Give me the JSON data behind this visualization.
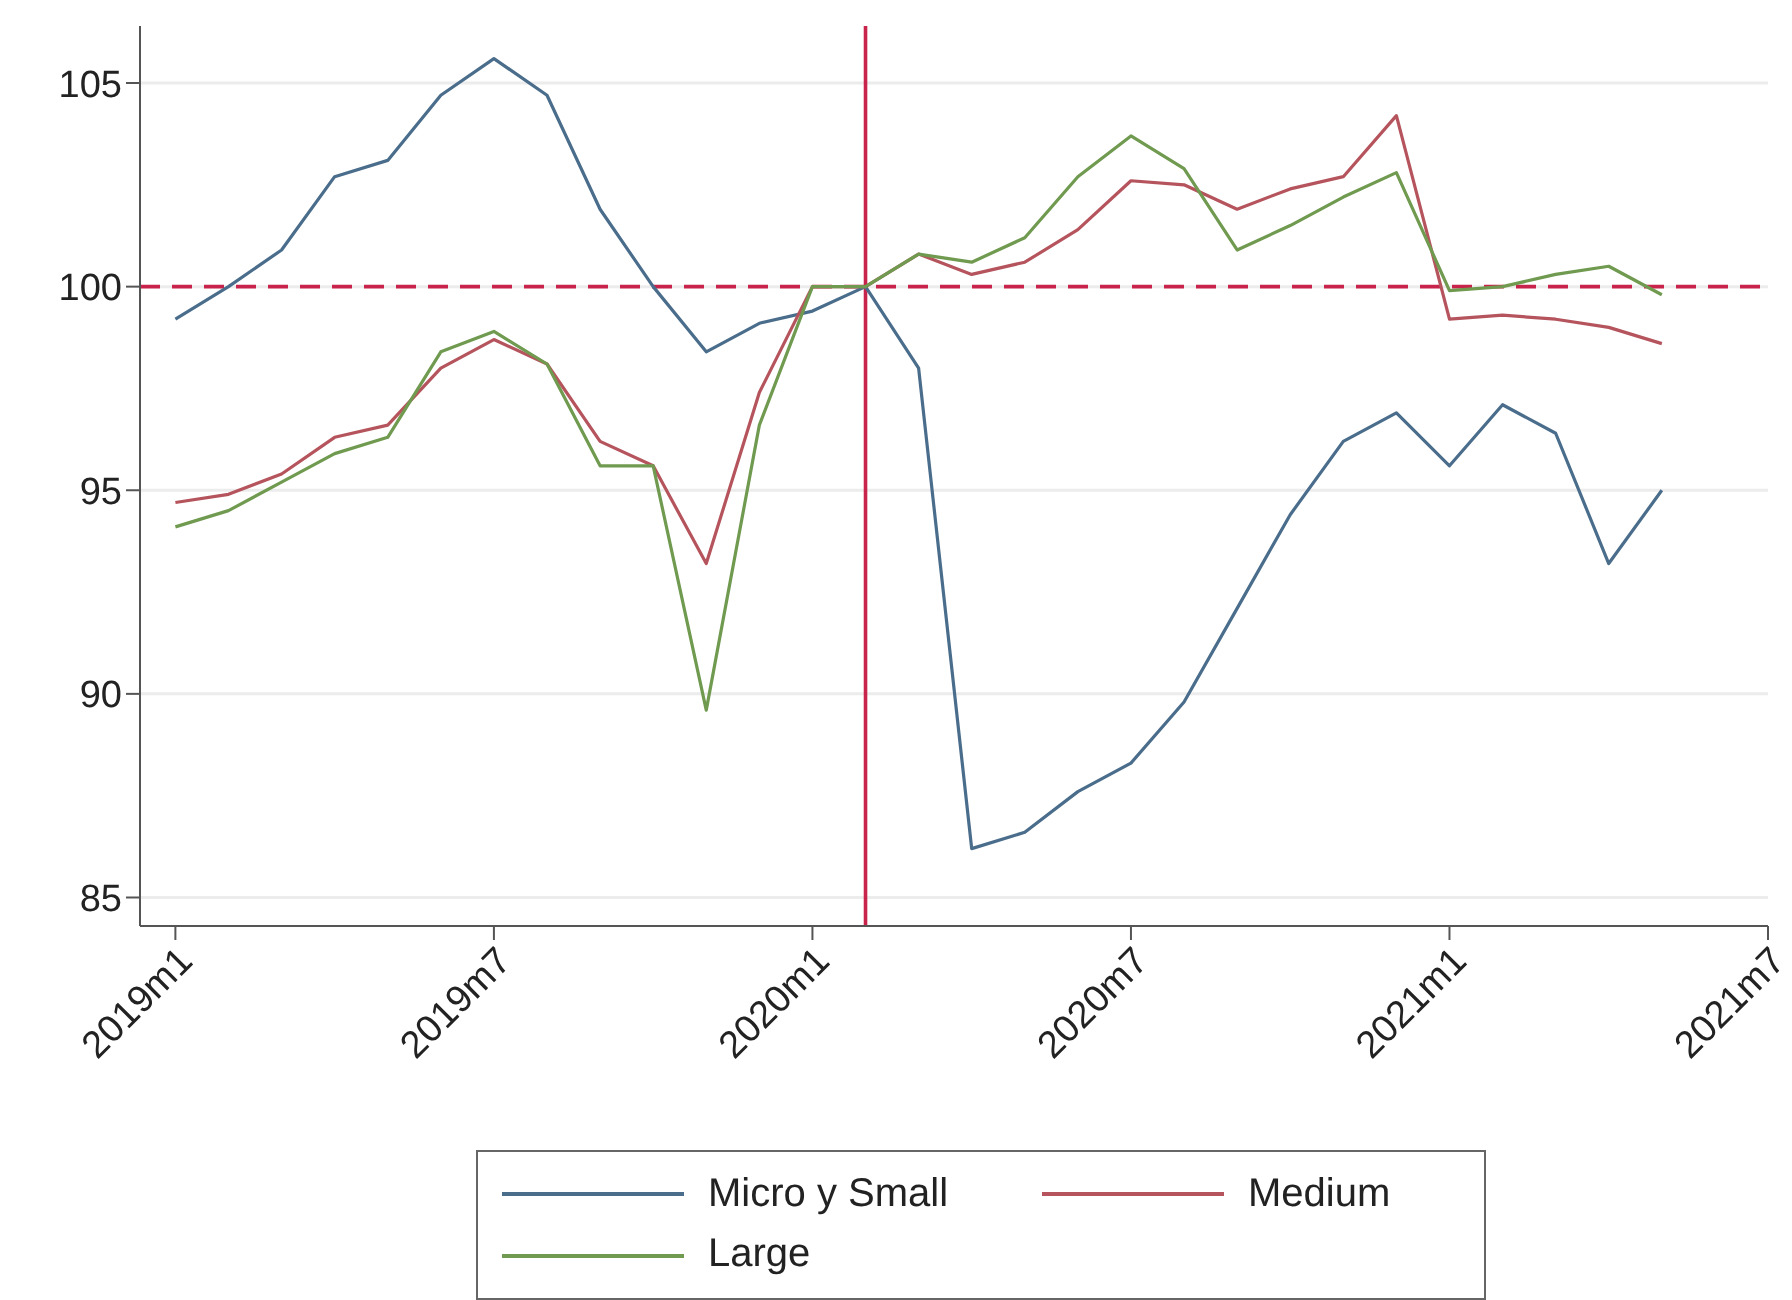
{
  "chart_data": {
    "type": "line",
    "x": [
      "2019-01",
      "2019-02",
      "2019-03",
      "2019-04",
      "2019-05",
      "2019-06",
      "2019-07",
      "2019-08",
      "2019-09",
      "2019-10",
      "2019-11",
      "2019-12",
      "2020-01",
      "2020-02",
      "2020-03",
      "2020-04",
      "2020-05",
      "2020-06",
      "2020-07",
      "2020-08",
      "2020-09",
      "2020-10",
      "2020-11",
      "2020-12",
      "2021-01",
      "2021-02",
      "2021-03",
      "2021-04",
      "2021-05"
    ],
    "series": [
      {
        "name": "Micro y Small",
        "color": "#4a6d8c",
        "values": [
          99.2,
          100.0,
          100.9,
          102.7,
          103.1,
          104.7,
          105.6,
          104.7,
          101.9,
          100.0,
          98.4,
          99.1,
          99.4,
          100.0,
          98.0,
          86.2,
          86.6,
          87.6,
          88.3,
          89.8,
          92.1,
          94.4,
          96.2,
          96.9,
          95.6,
          97.1,
          96.4,
          93.2,
          95.0
        ]
      },
      {
        "name": "Medium",
        "color": "#b5545c",
        "values": [
          94.7,
          94.9,
          95.4,
          96.3,
          96.6,
          98.0,
          98.7,
          98.1,
          96.2,
          95.6,
          93.2,
          97.4,
          100.0,
          100.0,
          100.8,
          100.3,
          100.6,
          101.4,
          102.6,
          102.5,
          101.9,
          102.4,
          102.7,
          104.2,
          99.2,
          99.3,
          99.2,
          99.0,
          98.6
        ]
      },
      {
        "name": "Large",
        "color": "#6f9a4f",
        "values": [
          94.1,
          94.5,
          95.2,
          95.9,
          96.3,
          98.4,
          98.9,
          98.1,
          95.6,
          95.6,
          89.6,
          96.6,
          100.0,
          100.0,
          100.8,
          100.6,
          101.2,
          102.7,
          103.7,
          102.9,
          100.9,
          101.5,
          102.2,
          102.8,
          99.9,
          100.0,
          100.3,
          100.5,
          99.8
        ]
      }
    ],
    "xlim": [
      "2018-12-11",
      "2021-07"
    ],
    "xticks": [
      {
        "value": "2019-01",
        "label": "2019m1"
      },
      {
        "value": "2019-07",
        "label": "2019m7"
      },
      {
        "value": "2020-01",
        "label": "2020m1"
      },
      {
        "value": "2020-07",
        "label": "2020m7"
      },
      {
        "value": "2021-01",
        "label": "2021m1"
      },
      {
        "value": "2021-07",
        "label": "2021m7"
      }
    ],
    "ylim": [
      84.3,
      106.4
    ],
    "yticks": [
      85,
      90,
      95,
      100,
      105
    ],
    "grid": "y",
    "legend": "bottom",
    "line_style": "solid",
    "marker": "none",
    "ref_lines": [
      {
        "axis": "y",
        "value": 100,
        "color": "#c8234a",
        "line_style": "dashed"
      },
      {
        "axis": "x",
        "value": "2020-02",
        "color": "#c8234a",
        "line_style": "solid"
      }
    ]
  }
}
